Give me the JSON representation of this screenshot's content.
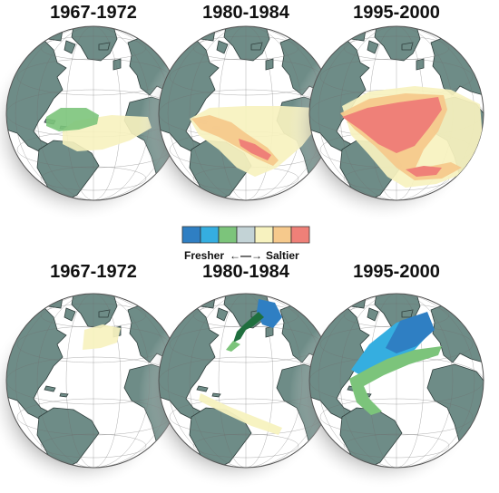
{
  "top_row": {
    "titles": [
      "1967-1972",
      "1980-1984",
      "1995-2000"
    ]
  },
  "bottom_row": {
    "titles": [
      "1967-1972",
      "1980-1984",
      "1995-2000"
    ]
  },
  "legend": {
    "left_label": "Fresher",
    "right_label": "Saltier",
    "arrow_glyph": "←—→",
    "colors": [
      "#2f7fc3",
      "#35aee0",
      "#7cc47b",
      "#c3d3d6",
      "#f7f2bf",
      "#f6c98c",
      "#ef8078"
    ]
  },
  "palette": {
    "ocean": "#ffffff",
    "land": "#6e8c87",
    "shadow": "#c9c9c9"
  }
}
